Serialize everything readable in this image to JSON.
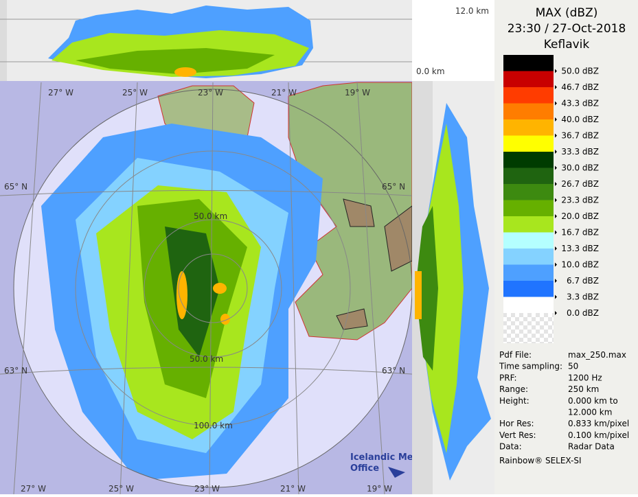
{
  "header": {
    "title": "MAX (dBZ)",
    "time": "23:30 / 27-Oct-2018",
    "station": "Keflavik"
  },
  "legend": {
    "colors": [
      "#000000",
      "#c80000",
      "#ff3c00",
      "#ff7d00",
      "#ffb400",
      "#ffff00",
      "#003c00",
      "#1f6410",
      "#3d8a10",
      "#66b000",
      "#a8e61e",
      "#b4ffff",
      "#84d2ff",
      "#4ea0ff",
      "#2074ff",
      "#ffffff"
    ],
    "labels": [
      "50.0 dBZ",
      "46.7 dBZ",
      "43.3 dBZ",
      "40.0 dBZ",
      "36.7 dBZ",
      "33.3 dBZ",
      "30.0 dBZ",
      "26.7 dBZ",
      "23.3 dBZ",
      "20.0 dBZ",
      "16.7 dBZ",
      "13.3 dBZ",
      "10.0 dBZ",
      "6.7 dBZ",
      "3.3 dBZ",
      "0.0 dBZ"
    ]
  },
  "info": {
    "rows": [
      [
        "Pdf File:",
        "max_250.max"
      ],
      [
        "Time sampling:",
        "50"
      ],
      [
        "PRF:",
        "1200 Hz"
      ],
      [
        "Range:",
        "250 km"
      ],
      [
        "Height:",
        "0.000 km to",
        "12.000 km"
      ],
      [
        "Hor Res:",
        "0.833 km/pixel"
      ],
      [
        "Vert Res:",
        "0.100 km/pixel"
      ],
      [
        "Data:",
        "Radar Data"
      ]
    ],
    "footer": "Rainbow® SELEX-SI"
  },
  "map": {
    "lon_top": [
      "27° W",
      "25° W",
      "23° W",
      "21° W",
      "19° W"
    ],
    "lon_bottom": [
      "27° W",
      "25° W",
      "23° W",
      "21° W",
      "19° W"
    ],
    "lat_left": [
      "65° N",
      "63° N"
    ],
    "lat_right": [
      "65° N",
      "63° N"
    ],
    "rings": [
      "50.0 km",
      "50.0 km",
      "100.0 km"
    ]
  },
  "profile": {
    "top": "12.0 km",
    "bottom": "0.0 km"
  },
  "logo": {
    "line1": "Icelandic Met",
    "line2": "Office"
  }
}
